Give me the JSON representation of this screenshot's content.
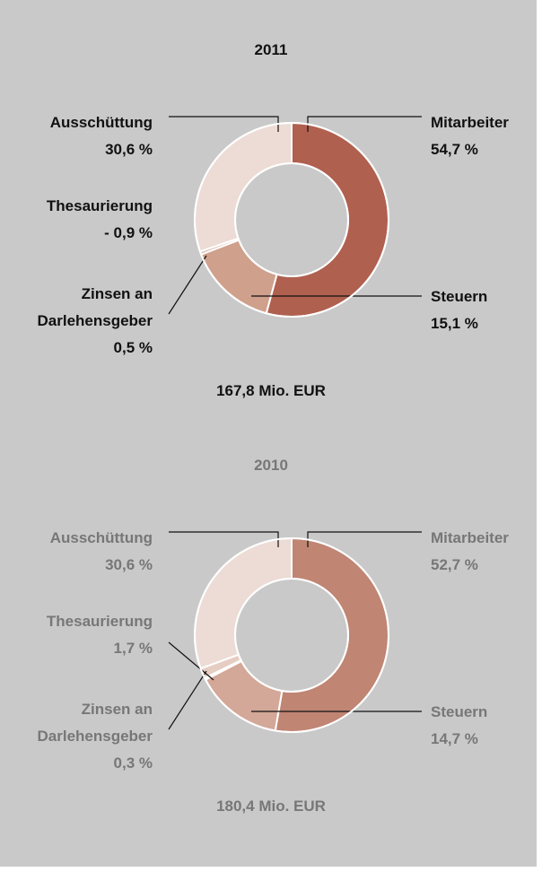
{
  "chart_data": [
    {
      "type": "pie",
      "donut": true,
      "title": "2011",
      "total": "167,8 Mio. EUR",
      "text_color": "#111111",
      "categories": [
        "Mitarbeiter",
        "Steuern",
        "Zinsen an Darlehensgeber",
        "Thesaurierung",
        "Ausschüttung"
      ],
      "values": [
        54.7,
        15.1,
        0.5,
        -0.9,
        30.6
      ],
      "value_labels": [
        "54,7 %",
        "15,1 %",
        "0,5 %",
        "- 0,9 %",
        "30,6 %"
      ],
      "colors": [
        "#b0604f",
        "#cfa08c",
        "#dcb7a8",
        "#e4c8bc",
        "#ecdcd5"
      ]
    },
    {
      "type": "pie",
      "donut": true,
      "title": "2010",
      "total": "180,4 Mio. EUR",
      "text_color": "#777777",
      "categories": [
        "Mitarbeiter",
        "Steuern",
        "Zinsen an Darlehensgeber",
        "Thesaurierung",
        "Ausschüttung"
      ],
      "values": [
        52.7,
        14.7,
        0.3,
        1.7,
        30.6
      ],
      "value_labels": [
        "52,7 %",
        "14,7 %",
        "0,3 %",
        "1,7 %",
        "30,6 %"
      ],
      "colors": [
        "#c08573",
        "#d3a898",
        "#ddbcad",
        "#e6cdc2",
        "#ecdcd5"
      ]
    }
  ]
}
